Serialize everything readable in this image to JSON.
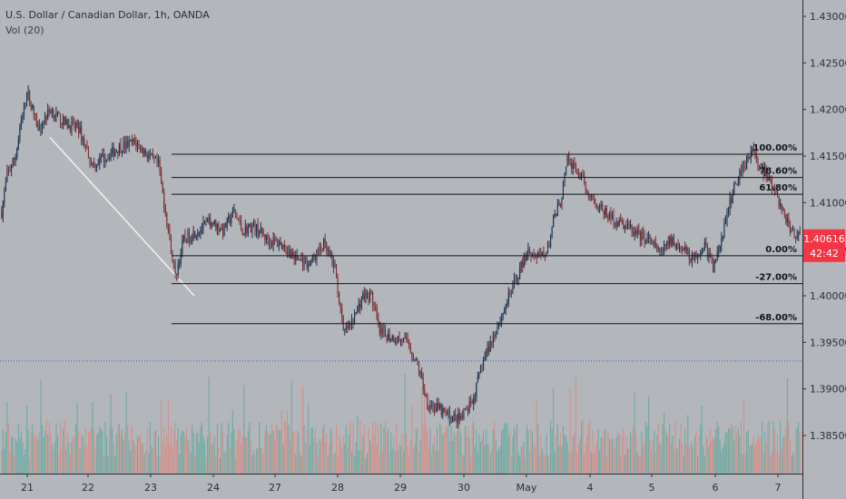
{
  "header": {
    "title": "U.S. Dollar / Canadian Dollar, 1h, OANDA",
    "volume_indicator": "Vol (20)"
  },
  "price_scale": {
    "current_price": "1.40616",
    "countdown": "42:42",
    "badge_color": "#f23645"
  },
  "colors": {
    "up_candle": "#1e3250",
    "down_candle": "#7a2f33",
    "up_volume": "#5fa89b",
    "down_volume": "#d98880",
    "trendline": "#f2f2f2",
    "dotted_level": "#2962ff"
  },
  "chart_data": {
    "type": "candlestick",
    "timeframe": "1h",
    "x_ticks": [
      "21",
      "22",
      "23",
      "24",
      "27",
      "28",
      "29",
      "30",
      "May",
      "4",
      "5",
      "6",
      "7"
    ],
    "y_ticks": [
      "1.43000",
      "1.42500",
      "1.42000",
      "1.41500",
      "1.41000",
      "1.40500",
      "1.40000",
      "1.39500",
      "1.39000",
      "1.38500"
    ],
    "ylim": [
      1.3808,
      1.4316
    ],
    "anchor_points": [
      [
        0,
        1.409
      ],
      [
        4,
        1.413
      ],
      [
        10,
        1.415
      ],
      [
        18,
        1.422
      ],
      [
        26,
        1.418
      ],
      [
        35,
        1.42
      ],
      [
        45,
        1.4185
      ],
      [
        55,
        1.418
      ],
      [
        65,
        1.414
      ],
      [
        75,
        1.415
      ],
      [
        85,
        1.416
      ],
      [
        95,
        1.4165
      ],
      [
        105,
        1.415
      ],
      [
        112,
        1.414
      ],
      [
        118,
        1.408
      ],
      [
        124,
        1.402
      ],
      [
        130,
        1.406
      ],
      [
        140,
        1.407
      ],
      [
        150,
        1.408
      ],
      [
        158,
        1.407
      ],
      [
        166,
        1.409
      ],
      [
        172,
        1.407
      ],
      [
        180,
        1.4075
      ],
      [
        190,
        1.406
      ],
      [
        200,
        1.4055
      ],
      [
        210,
        1.404
      ],
      [
        220,
        1.4035
      ],
      [
        230,
        1.4055
      ],
      [
        238,
        1.403
      ],
      [
        244,
        1.396
      ],
      [
        250,
        1.397
      ],
      [
        258,
        1.4
      ],
      [
        264,
        1.4
      ],
      [
        270,
        1.396
      ],
      [
        280,
        1.3955
      ],
      [
        290,
        1.395
      ],
      [
        298,
        1.392
      ],
      [
        304,
        1.3885
      ],
      [
        312,
        1.3878
      ],
      [
        320,
        1.387
      ],
      [
        328,
        1.3868
      ],
      [
        336,
        1.3885
      ],
      [
        344,
        1.393
      ],
      [
        352,
        1.396
      ],
      [
        360,
        1.399
      ],
      [
        368,
        1.402
      ],
      [
        376,
        1.405
      ],
      [
        384,
        1.404
      ],
      [
        390,
        1.405
      ],
      [
        394,
        1.408
      ],
      [
        399,
        1.41
      ],
      [
        404,
        1.4145
      ],
      [
        410,
        1.4135
      ],
      [
        416,
        1.412
      ],
      [
        422,
        1.4105
      ],
      [
        430,
        1.409
      ],
      [
        438,
        1.408
      ],
      [
        446,
        1.4075
      ],
      [
        454,
        1.4065
      ],
      [
        462,
        1.406
      ],
      [
        470,
        1.4045
      ],
      [
        478,
        1.406
      ],
      [
        486,
        1.405
      ],
      [
        494,
        1.404
      ],
      [
        502,
        1.4055
      ],
      [
        508,
        1.403
      ],
      [
        514,
        1.406
      ],
      [
        520,
        1.41
      ],
      [
        526,
        1.413
      ],
      [
        532,
        1.4145
      ],
      [
        536,
        1.416
      ],
      [
        540,
        1.414
      ],
      [
        546,
        1.413
      ],
      [
        552,
        1.411
      ],
      [
        558,
        1.409
      ],
      [
        564,
        1.407
      ],
      [
        570,
        1.4062
      ]
    ],
    "volume_ylim": [
      0,
      1
    ],
    "horizontal_levels": [
      {
        "price": 1.4152,
        "label": "100.00%"
      },
      {
        "price": 1.4127,
        "label": "78.60%"
      },
      {
        "price": 1.4109,
        "label": "61.80%"
      },
      {
        "price": 1.4043,
        "label": "0.00%"
      },
      {
        "price": 1.4013,
        "label": "-27.00%"
      },
      {
        "price": 1.397,
        "label": "-68.00%"
      }
    ],
    "dotted_level": 1.393,
    "trendline": {
      "from": [
        1.417
      ],
      "to": [
        1.4
      ]
    }
  }
}
